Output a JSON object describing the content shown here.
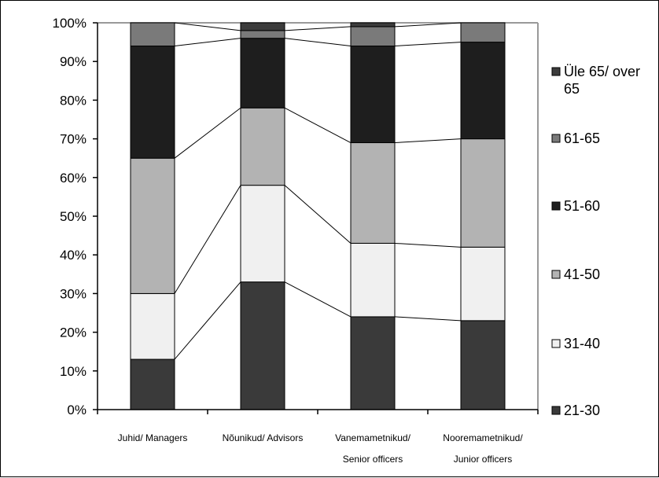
{
  "chart_data": {
    "type": "bar",
    "stacked": true,
    "percent": true,
    "categories": [
      [
        "Juhid/ Managers"
      ],
      [
        "Nõunikud/ Advisors"
      ],
      [
        "Vanemametnikud/",
        "Senior officers"
      ],
      [
        "Nooremametnikud/",
        "Junior officers"
      ]
    ],
    "series": [
      {
        "name": "21-30",
        "values": [
          13,
          33,
          24,
          23
        ],
        "color": "#3a3a3a"
      },
      {
        "name": "31-40",
        "values": [
          17,
          25,
          19,
          19
        ],
        "color": "#f0f0f0"
      },
      {
        "name": "41-50",
        "values": [
          35,
          20,
          26,
          28
        ],
        "color": "#b3b3b3"
      },
      {
        "name": "51-60",
        "values": [
          29,
          18,
          25,
          25
        ],
        "color": "#1e1e1e"
      },
      {
        "name": "61-65",
        "values": [
          6,
          2,
          5,
          5
        ],
        "color": "#7a7a7a"
      },
      {
        "name": "Üle 65/ over 65",
        "values": [
          0,
          2,
          1,
          0
        ],
        "color": "#3c3c3c"
      }
    ],
    "legend_lines": [
      [
        "Üle 65/ over",
        "65"
      ],
      [
        "61-65"
      ],
      [
        "51-60"
      ],
      [
        "41-50"
      ],
      [
        "31-40"
      ],
      [
        "21-30"
      ]
    ],
    "legend_position": "right",
    "yticks": [
      "0%",
      "10%",
      "20%",
      "30%",
      "40%",
      "50%",
      "60%",
      "70%",
      "80%",
      "90%",
      "100%"
    ],
    "ylim": [
      0,
      100
    ],
    "series_lines": true,
    "grid": false
  }
}
